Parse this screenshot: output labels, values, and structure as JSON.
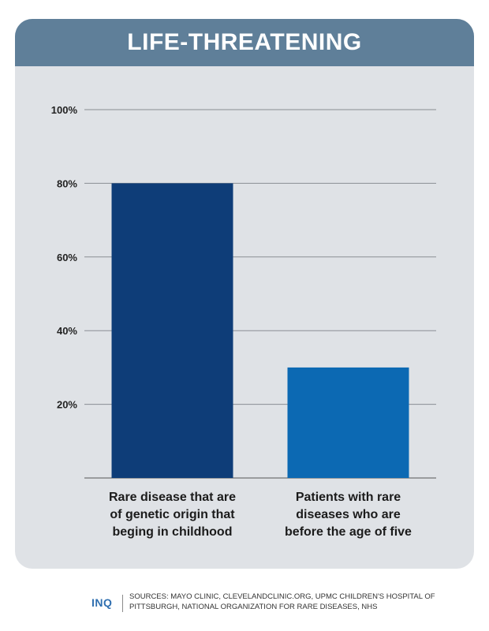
{
  "colors": {
    "header_bg": "#5f7f99",
    "card_bg": "#dfe2e6",
    "bar_dark": "#0e3d78",
    "bar_light": "#0c69b3",
    "grid": "#8a8e93",
    "brand": "#2f6fb0"
  },
  "footer": {
    "brand": "INQ",
    "sources": "SOURCES: MAYO CLINIC, CLEVELANDCLINIC.ORG, UPMC CHILDREN'S HOSPITAL OF PITTSBURGH, NATIONAL ORGANIZATION FOR RARE DISEASES, NHS"
  },
  "chart_data": {
    "type": "bar",
    "title": "LIFE-THREATENING",
    "xlabel": "",
    "ylabel": "",
    "ylim": [
      0,
      100
    ],
    "yticks": [
      20,
      40,
      60,
      80,
      100
    ],
    "ytick_labels": [
      "20%",
      "40%",
      "60%",
      "80%",
      "100%"
    ],
    "grid": true,
    "categories": [
      "Rare disease that are of genetic origin that beging in childhood",
      "Patients with rare diseases who are before the age of five"
    ],
    "category_lines": [
      [
        "Rare disease that are",
        "of genetic origin that",
        "beging in childhood"
      ],
      [
        "Patients with rare",
        "diseases who are",
        "before the age of five"
      ]
    ],
    "values": [
      80,
      30
    ],
    "bar_colors": [
      "#0e3d78",
      "#0c69b3"
    ]
  }
}
